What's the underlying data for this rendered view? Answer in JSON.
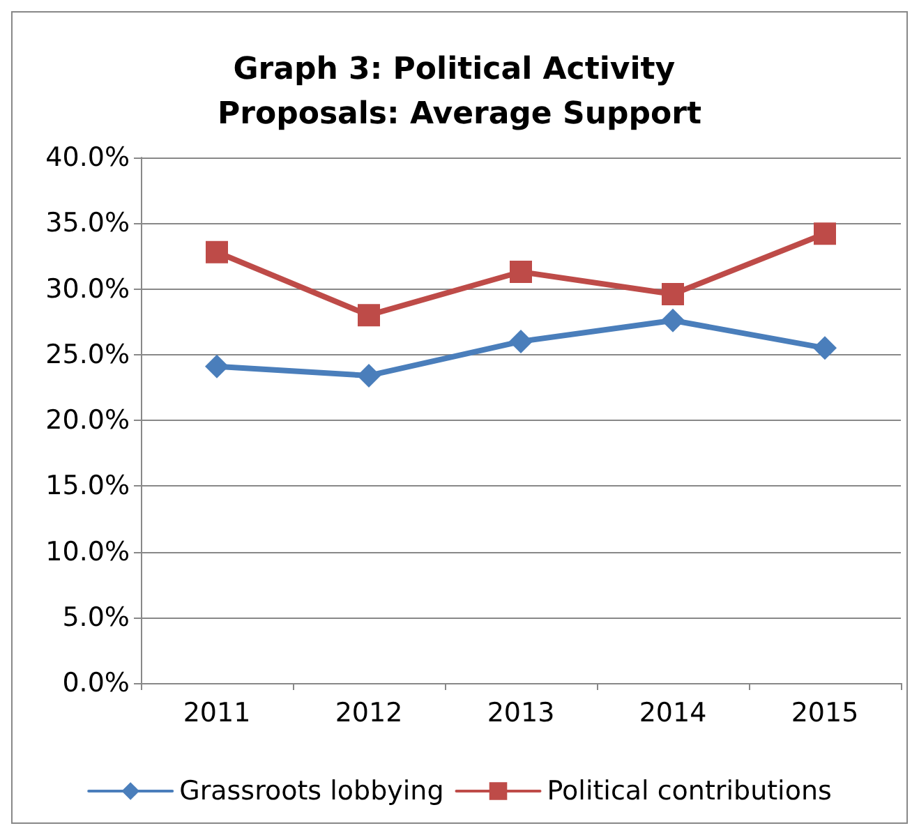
{
  "chart_data": {
    "type": "line",
    "title": "Graph 3: Political Activity Proposals: Average Support",
    "categories": [
      "2011",
      "2012",
      "2013",
      "2014",
      "2015"
    ],
    "series": [
      {
        "name": "Grassroots lobbying",
        "color": "#4a7ebb",
        "marker": "diamond",
        "values": [
          24.1,
          23.4,
          26.0,
          27.6,
          25.5
        ]
      },
      {
        "name": "Political contributions",
        "color": "#be4b48",
        "marker": "square",
        "values": [
          32.8,
          28.0,
          31.3,
          29.6,
          34.2
        ]
      }
    ],
    "ylim": [
      0,
      40
    ],
    "yticks": [
      {
        "value": 0,
        "label": "0.0%"
      },
      {
        "value": 5,
        "label": "5.0%"
      },
      {
        "value": 10,
        "label": "10.0%"
      },
      {
        "value": 15,
        "label": "15.0%"
      },
      {
        "value": 20,
        "label": "20.0%"
      },
      {
        "value": 25,
        "label": "25.0%"
      },
      {
        "value": 30,
        "label": "30.0%"
      },
      {
        "value": 35,
        "label": "35.0%"
      },
      {
        "value": 40,
        "label": "40.0%"
      }
    ],
    "grid": "y",
    "legend": "bottom",
    "line_style": "solid"
  }
}
